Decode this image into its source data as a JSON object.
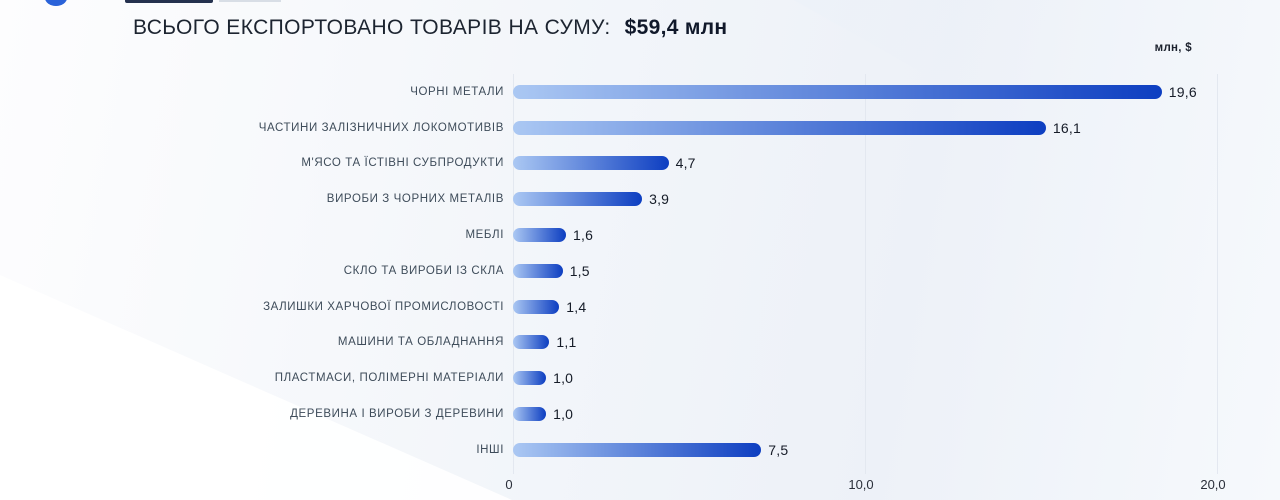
{
  "header": {
    "title": "ВСЬОГО ЕКСПОРТОВАНО ТОВАРІВ НА СУМУ:",
    "total": "$59,4 млн"
  },
  "axis": {
    "unit_label": "млн, $"
  },
  "chart_data": {
    "type": "bar",
    "orientation": "horizontal",
    "title": "ВСЬОГО ЕКСПОРТОВАНО ТОВАРІВ НА СУМУ: $59,4 млн",
    "unit": "млн, $",
    "categories": [
      "ЧОРНІ МЕТАЛИ",
      "ЧАСТИНИ ЗАЛІЗНИЧНИХ ЛОКОМОТИВІВ",
      "М'ЯСО ТА ЇСТІВНІ СУБПРОДУКТИ",
      "ВИРОБИ З ЧОРНИХ МЕТАЛІВ",
      "МЕБЛІ",
      "СКЛО ТА ВИРОБИ ІЗ СКЛА",
      "ЗАЛИШКИ ХАРЧОВОЇ ПРОМИСЛОВОСТІ",
      "МАШИНИ ТА ОБЛАДНАННЯ",
      "ПЛАСТМАСИ, ПОЛІМЕРНІ МАТЕРІАЛИ",
      "ДЕРЕВИНА І ВИРОБИ З ДЕРЕВИНИ",
      "ІНШІ"
    ],
    "values": [
      19.6,
      16.1,
      4.7,
      3.9,
      1.6,
      1.5,
      1.4,
      1.1,
      1.0,
      1.0,
      7.5
    ],
    "value_labels": [
      "19,6",
      "16,1",
      "4,7",
      "3,9",
      "1,6",
      "1,5",
      "1,4",
      "1,1",
      "1,0",
      "1,0",
      "7,5"
    ],
    "xlim": [
      0,
      20
    ],
    "x_ticks": [
      0,
      10,
      20
    ],
    "x_tick_labels": [
      "0",
      "10,0",
      "20,0"
    ],
    "legend": "none",
    "grid": "vertical",
    "colors": {
      "bar_gradient_start": "#abc8f3",
      "bar_gradient_end": "#0d3ec1",
      "gridline": "#e3e8f0",
      "category_text": "#3e4c5a",
      "value_text": "#161c28",
      "title_text": "#1c2430"
    }
  }
}
